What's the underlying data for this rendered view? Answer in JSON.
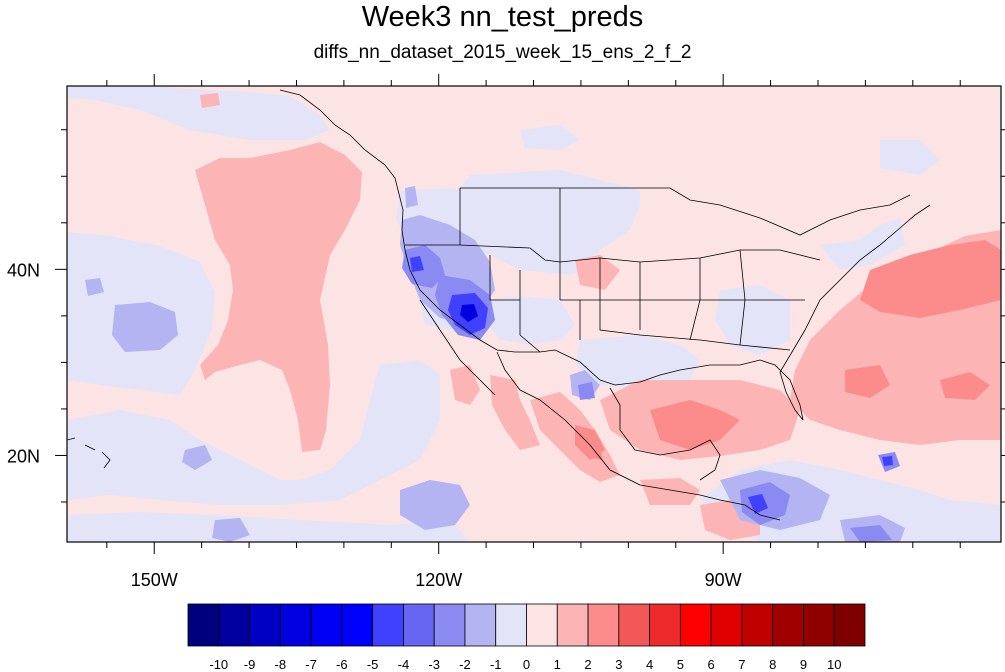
{
  "title": "Week3 nn_test_preds",
  "subtitle": "diffs_nn_dataset_2015_week_15_ens_2_f_2",
  "map": {
    "lon_labels": [
      "150W",
      "120W",
      "90W"
    ],
    "lat_labels": [
      "40N",
      "20N"
    ],
    "lon_ticks": [
      -150,
      -120,
      -90
    ],
    "lat_ticks": [
      40,
      20
    ],
    "lon_range": [
      -159.2,
      -60.7
    ],
    "lat_range": [
      10.7,
      59.7
    ]
  },
  "colorbar": {
    "labels": [
      "-10",
      "-9",
      "-8",
      "-7",
      "-6",
      "-5",
      "-4",
      "-3",
      "-2",
      "-1",
      "0",
      "1",
      "2",
      "3",
      "4",
      "5",
      "6",
      "7",
      "8",
      "9",
      "10"
    ],
    "colors": [
      "#00007f",
      "#0000a0",
      "#0000c2",
      "#0000e0",
      "#0000f5",
      "#0000ff",
      "#4040ff",
      "#6666f2",
      "#8a8af2",
      "#b4b4f2",
      "#e4e4f8",
      "#fce4e4",
      "#fcb4b4",
      "#fc8c8c",
      "#f25858",
      "#ef2a2a",
      "#ff0000",
      "#e00000",
      "#c00000",
      "#a00000",
      "#900000",
      "#7f0000"
    ]
  }
}
